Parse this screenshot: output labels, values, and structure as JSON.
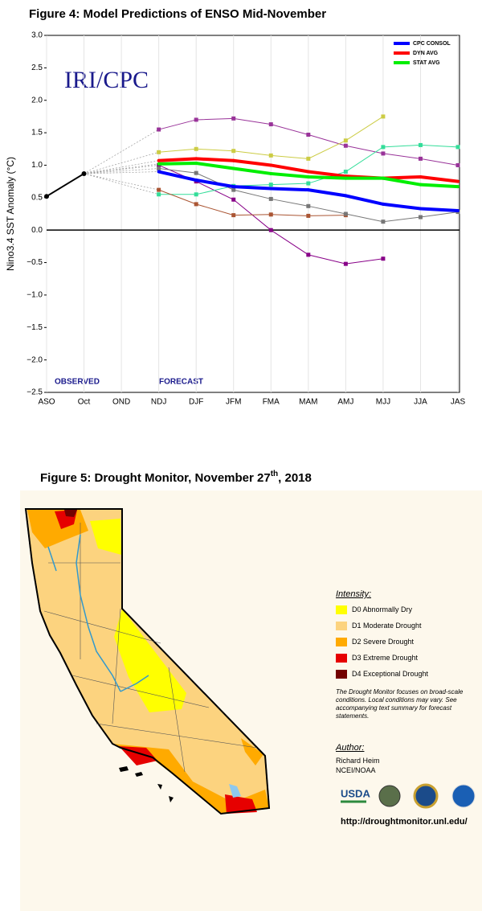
{
  "chart_data": {
    "type": "line",
    "title": "Figure 4:  Model Predictions of ENSO Mid-November",
    "y_label": "Nino3.4 SST Anomaly (°C)",
    "annotations": {
      "brand": "IRI/CPC",
      "observed": "OBSERVED",
      "forecast": "FORECAST"
    },
    "categories": [
      "ASO",
      "Oct",
      "OND",
      "NDJ",
      "DJF",
      "JFM",
      "FMA",
      "MAM",
      "AMJ",
      "MJJ",
      "JJA",
      "JAS"
    ],
    "ylim": [
      -2.5,
      3.0
    ],
    "yticks": [
      {
        "value": 3,
        "label": "3.0"
      },
      2.5,
      {
        "value": 2,
        "label": "2.0"
      },
      1.5,
      {
        "value": 1,
        "label": "1.0"
      },
      0.5,
      {
        "value": 0,
        "label": "0.0"
      },
      {
        "value": -0.5,
        "label": "−0.5"
      },
      {
        "value": -1,
        "label": "−1.0"
      },
      {
        "value": -1.5,
        "label": "−1.5"
      },
      {
        "value": -2,
        "label": "−2.0"
      },
      {
        "value": -2.5,
        "label": "−2.5"
      }
    ],
    "grid": true,
    "series": [
      {
        "color": "#000000",
        "values": [
          0.52,
          0.87,
          null,
          null,
          null,
          null,
          null,
          null,
          null,
          null,
          null,
          null
        ]
      },
      {
        "color": "#993399",
        "values": [
          null,
          null,
          null,
          1.55,
          1.7,
          1.72,
          1.63,
          1.47,
          1.3,
          1.18,
          1.1,
          1.0
        ]
      },
      {
        "color": "#880088",
        "values": [
          null,
          null,
          null,
          1.0,
          0.75,
          0.47,
          0.0,
          -0.38,
          -0.52,
          -0.44,
          null,
          null
        ]
      },
      {
        "color": "#cccc44",
        "values": [
          null,
          null,
          null,
          1.2,
          1.25,
          1.22,
          1.15,
          1.1,
          1.38,
          1.75,
          null,
          null
        ]
      },
      {
        "color": "#33dd99",
        "values": [
          null,
          null,
          null,
          0.55,
          0.55,
          0.68,
          0.7,
          0.72,
          0.9,
          1.28,
          1.31,
          1.28
        ]
      },
      {
        "color": "#aa5533",
        "values": [
          null,
          null,
          null,
          0.62,
          0.4,
          0.23,
          0.24,
          0.22,
          0.23,
          null,
          null,
          null
        ]
      },
      {
        "color": "#777777",
        "values": [
          null,
          null,
          null,
          0.95,
          0.88,
          0.62,
          0.48,
          0.37,
          0.25,
          0.13,
          0.2,
          0.28
        ]
      },
      {
        "name": "CPC CONSOL",
        "color": "#0000ff",
        "values": [
          null,
          null,
          null,
          0.9,
          0.77,
          0.67,
          0.64,
          0.62,
          0.53,
          0.4,
          0.33,
          0.3
        ]
      },
      {
        "name": "DYN AVG",
        "color": "#ff0000",
        "values": [
          null,
          null,
          null,
          1.07,
          1.1,
          1.07,
          1.0,
          0.9,
          0.83,
          0.8,
          0.82,
          0.75
        ]
      },
      {
        "name": "STAT AVG",
        "color": "#00ee00",
        "values": [
          null,
          null,
          null,
          1.02,
          1.03,
          0.95,
          0.87,
          0.82,
          0.8,
          0.8,
          0.7,
          0.67
        ]
      }
    ]
  },
  "drought_monitor": {
    "title": {
      "main": "Figure 5: Drought Monitor, November 27",
      "sup": "th",
      "end": ", 2018"
    },
    "legend": {
      "heading": "Intensity:",
      "items": [
        {
          "label": "D0 Abnormally Dry",
          "color": "#ffff00"
        },
        {
          "label": "D1 Moderate Drought",
          "color": "#fcd37f"
        },
        {
          "label": "D2 Severe Drought",
          "color": "#ffaa00"
        },
        {
          "label": "D3 Extreme Drought",
          "color": "#e60000"
        },
        {
          "label": "D4 Exceptional Drought",
          "color": "#730000"
        }
      ]
    },
    "note": "The Drought Monitor focuses on broad-scale conditions. Local conditions may vary. See accompanying text summary for forecast statements.",
    "author": {
      "heading": "Author:",
      "name": "Richard Heim",
      "org": "NCEI/NOAA"
    },
    "logo": "USDA",
    "url": "http://droughtmonitor.unl.edu/"
  }
}
